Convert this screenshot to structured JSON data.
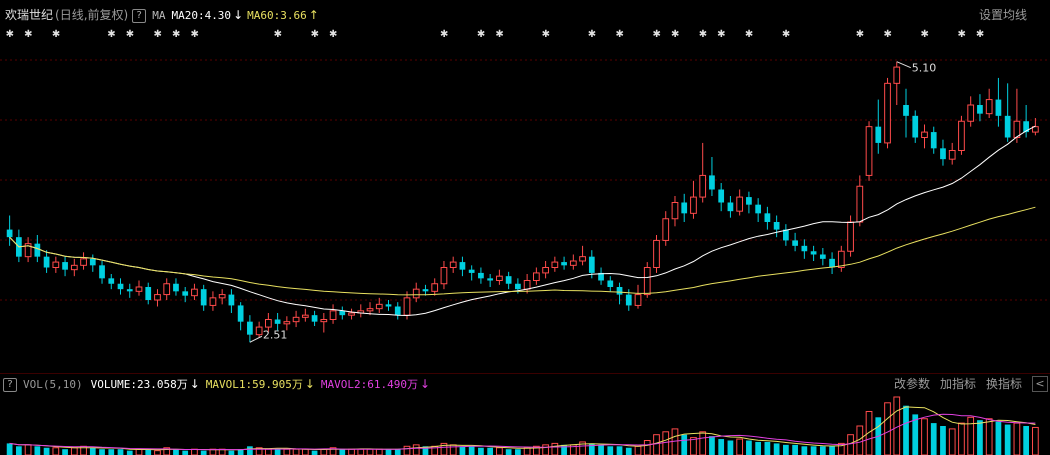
{
  "header": {
    "stock_name": "欢瑞世纪",
    "period_label": "(日线,前复权)",
    "help_label": "?",
    "indicator_name": "MA",
    "ma20_label": "MA20:4.30",
    "ma20_arrow": "↓",
    "ma60_label": "MA60:3.66",
    "ma60_arrow": "↑",
    "settings_button": "设置均线"
  },
  "vol_header": {
    "help_label": "?",
    "indicator_name": "VOL(5,10)",
    "volume_label": "VOLUME:23.058万",
    "volume_arrow": "↓",
    "mavol1_label": "MAVOL1:59.905万",
    "mavol1_arrow": "↓",
    "mavol2_label": "MAVOL2:61.490万",
    "mavol2_arrow": "↓",
    "change_params_button": "改参数",
    "add_indicator_button": "加指标",
    "switch_indicator_button": "换指标",
    "nav_button": "<"
  },
  "colors": {
    "up": "#ff4b4b",
    "down": "#00d0e0",
    "ma20": "#ffffff",
    "ma60": "#e8e060",
    "mavol1": "#e8e060",
    "mavol2": "#e040e0",
    "grid": "#5a0000"
  },
  "chart_data": {
    "type": "candlestick",
    "annotations": {
      "high_label": "5.10",
      "low_label": "2.51"
    },
    "price_range": [
      2.3,
      5.3
    ],
    "candles": [
      [
        3.55,
        3.48,
        3.68,
        3.4
      ],
      [
        3.48,
        3.3,
        3.55,
        3.25
      ],
      [
        3.3,
        3.42,
        3.48,
        3.25
      ],
      [
        3.42,
        3.3,
        3.5,
        3.25
      ],
      [
        3.3,
        3.2,
        3.36,
        3.15
      ],
      [
        3.2,
        3.25,
        3.3,
        3.15
      ],
      [
        3.25,
        3.18,
        3.3,
        3.12
      ],
      [
        3.18,
        3.22,
        3.28,
        3.12
      ],
      [
        3.22,
        3.28,
        3.34,
        3.18
      ],
      [
        3.28,
        3.22,
        3.32,
        3.16
      ],
      [
        3.22,
        3.1,
        3.26,
        3.05
      ],
      [
        3.1,
        3.05,
        3.14,
        3.0
      ],
      [
        3.05,
        3.0,
        3.1,
        2.95
      ],
      [
        3.0,
        2.98,
        3.05,
        2.92
      ],
      [
        2.98,
        3.02,
        3.08,
        2.94
      ],
      [
        3.02,
        2.9,
        3.06,
        2.86
      ],
      [
        2.9,
        2.95,
        3.0,
        2.84
      ],
      [
        2.95,
        3.05,
        3.1,
        2.9
      ],
      [
        3.05,
        2.98,
        3.1,
        2.94
      ],
      [
        2.98,
        2.94,
        3.02,
        2.88
      ],
      [
        2.94,
        3.0,
        3.05,
        2.9
      ],
      [
        3.0,
        2.85,
        3.04,
        2.8
      ],
      [
        2.85,
        2.92,
        2.98,
        2.8
      ],
      [
        2.92,
        2.95,
        3.0,
        2.86
      ],
      [
        2.95,
        2.85,
        3.0,
        2.78
      ],
      [
        2.85,
        2.7,
        2.88,
        2.62
      ],
      [
        2.7,
        2.58,
        2.76,
        2.51
      ],
      [
        2.58,
        2.65,
        2.7,
        2.55
      ],
      [
        2.65,
        2.72,
        2.78,
        2.6
      ],
      [
        2.72,
        2.68,
        2.78,
        2.62
      ],
      [
        2.68,
        2.7,
        2.75,
        2.62
      ],
      [
        2.7,
        2.74,
        2.8,
        2.65
      ],
      [
        2.74,
        2.76,
        2.82,
        2.7
      ],
      [
        2.76,
        2.7,
        2.8,
        2.66
      ],
      [
        2.7,
        2.72,
        2.78,
        2.6
      ],
      [
        2.72,
        2.8,
        2.86,
        2.68
      ],
      [
        2.8,
        2.76,
        2.84,
        2.72
      ],
      [
        2.76,
        2.78,
        2.82,
        2.72
      ],
      [
        2.78,
        2.8,
        2.86,
        2.74
      ],
      [
        2.8,
        2.82,
        2.88,
        2.76
      ],
      [
        2.82,
        2.86,
        2.92,
        2.78
      ],
      [
        2.86,
        2.84,
        2.9,
        2.8
      ],
      [
        2.84,
        2.76,
        2.88,
        2.72
      ],
      [
        2.76,
        2.92,
        2.98,
        2.72
      ],
      [
        2.92,
        3.0,
        3.06,
        2.88
      ],
      [
        3.0,
        2.98,
        3.04,
        2.94
      ],
      [
        2.98,
        3.05,
        3.1,
        2.94
      ],
      [
        3.05,
        3.2,
        3.26,
        3.0
      ],
      [
        3.2,
        3.25,
        3.3,
        3.15
      ],
      [
        3.25,
        3.18,
        3.3,
        3.12
      ],
      [
        3.18,
        3.15,
        3.22,
        3.08
      ],
      [
        3.15,
        3.1,
        3.2,
        3.05
      ],
      [
        3.1,
        3.08,
        3.14,
        3.02
      ],
      [
        3.08,
        3.12,
        3.18,
        3.04
      ],
      [
        3.12,
        3.05,
        3.16,
        3.0
      ],
      [
        3.05,
        3.0,
        3.1,
        2.96
      ],
      [
        3.0,
        3.08,
        3.14,
        2.96
      ],
      [
        3.08,
        3.15,
        3.2,
        3.04
      ],
      [
        3.15,
        3.2,
        3.26,
        3.1
      ],
      [
        3.2,
        3.25,
        3.3,
        3.16
      ],
      [
        3.25,
        3.22,
        3.3,
        3.18
      ],
      [
        3.22,
        3.26,
        3.32,
        3.18
      ],
      [
        3.26,
        3.3,
        3.4,
        3.22
      ],
      [
        3.3,
        3.15,
        3.36,
        3.1
      ],
      [
        3.15,
        3.08,
        3.2,
        3.04
      ],
      [
        3.08,
        3.02,
        3.12,
        2.98
      ],
      [
        3.02,
        2.95,
        3.06,
        2.86
      ],
      [
        2.95,
        2.85,
        3.0,
        2.8
      ],
      [
        2.85,
        2.95,
        3.04,
        2.82
      ],
      [
        2.95,
        3.2,
        3.25,
        2.92
      ],
      [
        3.2,
        3.45,
        3.5,
        3.15
      ],
      [
        3.45,
        3.65,
        3.72,
        3.4
      ],
      [
        3.65,
        3.8,
        3.86,
        3.58
      ],
      [
        3.8,
        3.7,
        3.88,
        3.62
      ],
      [
        3.7,
        3.85,
        4.0,
        3.65
      ],
      [
        3.85,
        4.05,
        4.35,
        3.8
      ],
      [
        4.05,
        3.92,
        4.22,
        3.86
      ],
      [
        3.92,
        3.8,
        3.98,
        3.72
      ],
      [
        3.8,
        3.72,
        3.86,
        3.66
      ],
      [
        3.72,
        3.85,
        3.92,
        3.68
      ],
      [
        3.85,
        3.78,
        3.9,
        3.7
      ],
      [
        3.78,
        3.7,
        3.84,
        3.62
      ],
      [
        3.7,
        3.62,
        3.76,
        3.55
      ],
      [
        3.62,
        3.55,
        3.68,
        3.48
      ],
      [
        3.55,
        3.45,
        3.6,
        3.4
      ],
      [
        3.45,
        3.4,
        3.52,
        3.35
      ],
      [
        3.4,
        3.35,
        3.46,
        3.28
      ],
      [
        3.35,
        3.32,
        3.4,
        3.26
      ],
      [
        3.32,
        3.28,
        3.38,
        3.22
      ],
      [
        3.28,
        3.2,
        3.34,
        3.14
      ],
      [
        3.2,
        3.35,
        3.4,
        3.16
      ],
      [
        3.35,
        3.62,
        3.68,
        3.3
      ],
      [
        3.62,
        3.95,
        4.05,
        3.58
      ],
      [
        4.05,
        4.5,
        4.55,
        4.0
      ],
      [
        4.5,
        4.35,
        4.75,
        4.25
      ],
      [
        4.35,
        4.9,
        4.95,
        4.3
      ],
      [
        4.9,
        5.05,
        5.1,
        4.7
      ],
      [
        4.7,
        4.6,
        4.85,
        4.4
      ],
      [
        4.6,
        4.4,
        4.65,
        4.35
      ],
      [
        4.4,
        4.45,
        4.52,
        4.3
      ],
      [
        4.45,
        4.3,
        4.5,
        4.25
      ],
      [
        4.3,
        4.2,
        4.38,
        4.14
      ],
      [
        4.2,
        4.28,
        4.35,
        4.15
      ],
      [
        4.28,
        4.55,
        4.6,
        4.24
      ],
      [
        4.55,
        4.7,
        4.78,
        4.5
      ],
      [
        4.7,
        4.62,
        4.8,
        4.55
      ],
      [
        4.62,
        4.75,
        4.85,
        4.58
      ],
      [
        4.75,
        4.6,
        4.95,
        4.5
      ],
      [
        4.6,
        4.4,
        4.9,
        4.36
      ],
      [
        4.4,
        4.55,
        4.85,
        4.35
      ],
      [
        4.55,
        4.45,
        4.7,
        4.4
      ],
      [
        4.45,
        4.5,
        4.58,
        4.42
      ]
    ],
    "volume": [
      8,
      6,
      7,
      6,
      5,
      5,
      4,
      5,
      6,
      5,
      4,
      4,
      4,
      3,
      4,
      4,
      3,
      5,
      4,
      3,
      4,
      3,
      4,
      4,
      3,
      4,
      6,
      5,
      4,
      4,
      4,
      4,
      4,
      3,
      4,
      5,
      4,
      4,
      4,
      4,
      4,
      4,
      4,
      6,
      7,
      6,
      6,
      8,
      7,
      6,
      6,
      5,
      5,
      5,
      4,
      4,
      5,
      6,
      7,
      8,
      7,
      7,
      9,
      8,
      7,
      6,
      6,
      5,
      6,
      10,
      14,
      16,
      18,
      14,
      12,
      16,
      13,
      11,
      10,
      11,
      10,
      9,
      9,
      8,
      7,
      7,
      6,
      6,
      6,
      6,
      8,
      14,
      20,
      30,
      26,
      36,
      40,
      34,
      28,
      25,
      22,
      20,
      18,
      22,
      26,
      24,
      25,
      23,
      21,
      22,
      20,
      19
    ],
    "volume_max": 40
  }
}
